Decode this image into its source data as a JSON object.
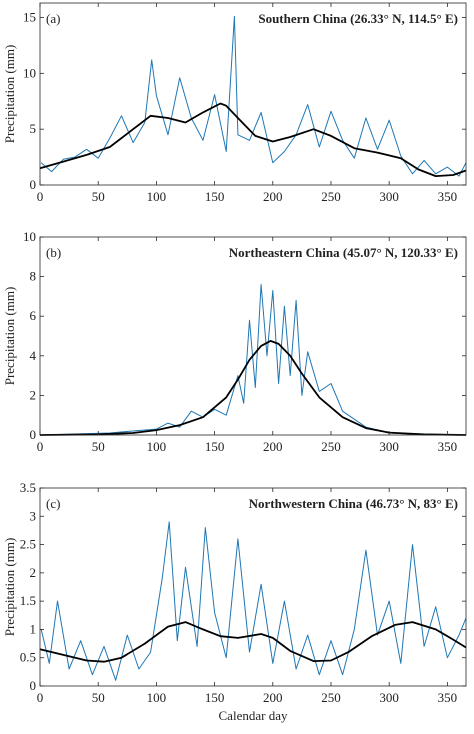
{
  "chart_data": [
    {
      "type": "line",
      "panel_letter": "(a)",
      "title": "Southern China (26.33° N, 114.5° E)",
      "xlabel": "",
      "ylabel": "Precipitation (mm)",
      "xlim": [
        0,
        366
      ],
      "ylim": [
        0,
        16.3
      ],
      "xticks": [
        0,
        50,
        100,
        150,
        200,
        250,
        300,
        350
      ],
      "yticks": [
        0,
        5,
        10,
        15
      ],
      "grid": false,
      "series": [
        {
          "role": "daily",
          "color": "#1f77b4",
          "x": [
            1,
            10,
            20,
            30,
            40,
            50,
            60,
            70,
            80,
            90,
            96,
            100,
            110,
            120,
            130,
            140,
            150,
            160,
            167,
            170,
            180,
            190,
            200,
            210,
            220,
            230,
            240,
            250,
            260,
            270,
            280,
            290,
            300,
            310,
            320,
            330,
            340,
            350,
            360,
            366
          ],
          "y": [
            2.0,
            1.2,
            2.3,
            2.5,
            3.2,
            2.4,
            4.2,
            6.2,
            3.8,
            5.6,
            11.2,
            8.0,
            4.5,
            9.6,
            6.0,
            4.0,
            8.1,
            3.0,
            15.1,
            4.5,
            4.0,
            6.5,
            2.0,
            3.0,
            4.5,
            7.2,
            3.4,
            6.6,
            4.0,
            2.4,
            6.0,
            3.2,
            5.8,
            2.6,
            1.0,
            2.2,
            1.0,
            1.6,
            0.8,
            2.0
          ]
        },
        {
          "role": "smoothed",
          "color": "#000000",
          "x": [
            0,
            20,
            40,
            60,
            80,
            95,
            110,
            125,
            140,
            155,
            160,
            170,
            185,
            200,
            215,
            235,
            250,
            270,
            290,
            310,
            325,
            340,
            355,
            366
          ],
          "y": [
            1.5,
            2.1,
            2.7,
            3.4,
            5.0,
            6.2,
            6.0,
            5.6,
            6.5,
            7.3,
            7.1,
            6.0,
            4.4,
            3.9,
            4.3,
            5.0,
            4.4,
            3.3,
            2.9,
            2.4,
            1.4,
            0.8,
            0.9,
            1.3
          ]
        }
      ]
    },
    {
      "type": "line",
      "panel_letter": "(b)",
      "title": "Northeastern China (45.07° N, 120.33° E)",
      "xlabel": "",
      "ylabel": "Precipitation (mm)",
      "xlim": [
        0,
        366
      ],
      "ylim": [
        0,
        10
      ],
      "xticks": [
        0,
        50,
        100,
        150,
        200,
        250,
        300,
        350
      ],
      "yticks": [
        0,
        2,
        4,
        6,
        8,
        10
      ],
      "grid": false,
      "series": [
        {
          "role": "daily",
          "color": "#1f77b4",
          "x": [
            1,
            30,
            60,
            80,
            100,
            110,
            120,
            130,
            140,
            150,
            160,
            170,
            175,
            180,
            185,
            190,
            195,
            200,
            205,
            210,
            215,
            220,
            225,
            230,
            240,
            250,
            260,
            270,
            280,
            300,
            330,
            366
          ],
          "y": [
            0.0,
            0.05,
            0.1,
            0.2,
            0.3,
            0.6,
            0.4,
            1.2,
            0.9,
            1.3,
            1.0,
            3.0,
            1.6,
            5.8,
            2.4,
            7.6,
            4.0,
            7.3,
            2.6,
            6.5,
            3.0,
            6.8,
            2.0,
            4.2,
            2.2,
            2.6,
            1.2,
            0.8,
            0.4,
            0.1,
            0.05,
            0.0
          ]
        },
        {
          "role": "smoothed",
          "color": "#000000",
          "x": [
            0,
            50,
            80,
            100,
            120,
            140,
            160,
            170,
            180,
            190,
            198,
            205,
            215,
            225,
            240,
            260,
            280,
            300,
            330,
            366
          ],
          "y": [
            0.0,
            0.03,
            0.1,
            0.25,
            0.5,
            0.9,
            1.9,
            2.8,
            3.8,
            4.5,
            4.75,
            4.6,
            4.0,
            3.1,
            1.9,
            0.9,
            0.35,
            0.12,
            0.03,
            0.0
          ]
        }
      ]
    },
    {
      "type": "line",
      "panel_letter": "(c)",
      "title": "Northwestern China (46.73° N, 83° E)",
      "xlabel": "Calendar day",
      "ylabel": "Precipitation (mm)",
      "xlim": [
        0,
        366
      ],
      "ylim": [
        0,
        3.5
      ],
      "xticks": [
        0,
        50,
        100,
        150,
        200,
        250,
        300,
        350
      ],
      "yticks": [
        0,
        0.5,
        1,
        1.5,
        2,
        2.5,
        3,
        3.5
      ],
      "grid": false,
      "series": [
        {
          "role": "daily",
          "color": "#1f77b4",
          "x": [
            1,
            8,
            15,
            25,
            35,
            45,
            55,
            65,
            75,
            85,
            95,
            105,
            111,
            118,
            125,
            135,
            142,
            150,
            160,
            170,
            180,
            190,
            200,
            210,
            220,
            230,
            240,
            250,
            260,
            270,
            280,
            290,
            300,
            310,
            320,
            330,
            340,
            350,
            360,
            366
          ],
          "y": [
            1.0,
            0.4,
            1.5,
            0.3,
            0.8,
            0.2,
            0.7,
            0.1,
            0.9,
            0.3,
            0.6,
            1.9,
            2.9,
            0.8,
            2.1,
            0.7,
            2.8,
            1.3,
            0.5,
            2.6,
            0.6,
            1.8,
            0.4,
            1.5,
            0.3,
            0.9,
            0.2,
            0.8,
            0.2,
            1.0,
            2.4,
            0.9,
            1.5,
            0.4,
            2.5,
            0.7,
            1.4,
            0.5,
            0.9,
            1.2
          ]
        },
        {
          "role": "smoothed",
          "color": "#000000",
          "x": [
            0,
            20,
            40,
            55,
            70,
            90,
            110,
            125,
            140,
            155,
            170,
            190,
            200,
            215,
            235,
            250,
            265,
            285,
            305,
            320,
            340,
            355,
            366
          ],
          "y": [
            0.65,
            0.55,
            0.45,
            0.43,
            0.5,
            0.75,
            1.05,
            1.13,
            1.0,
            0.88,
            0.85,
            0.92,
            0.85,
            0.62,
            0.44,
            0.45,
            0.6,
            0.88,
            1.08,
            1.13,
            1.0,
            0.82,
            0.68
          ]
        }
      ]
    }
  ]
}
